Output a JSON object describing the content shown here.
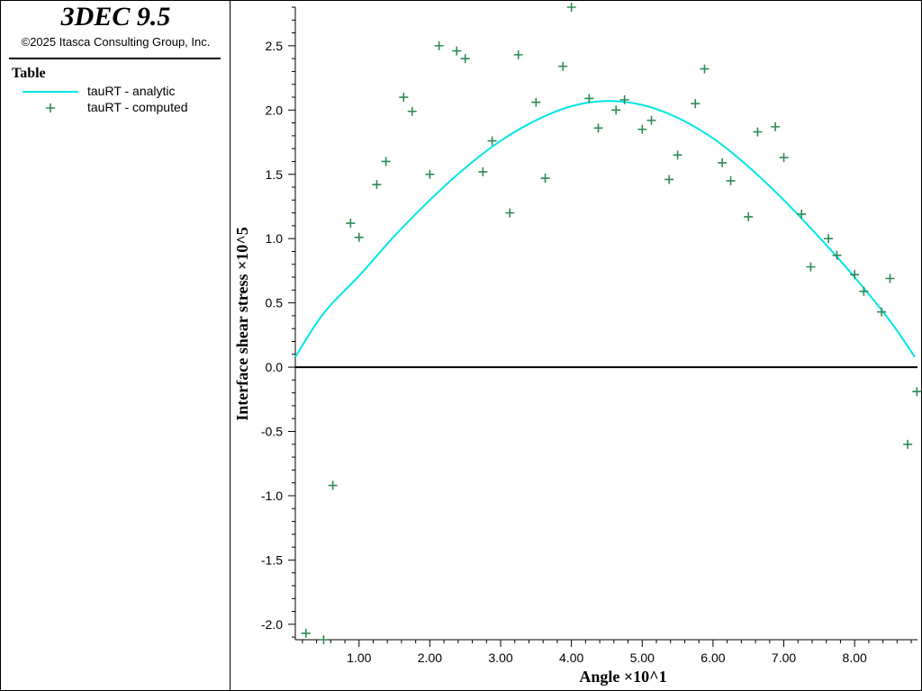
{
  "app": {
    "title": "3DEC 9.5",
    "copyright": "©2025 Itasca Consulting Group, Inc."
  },
  "legend": {
    "heading": "Table",
    "items": [
      {
        "label": "tauRT - analytic",
        "color": "#00e5e5",
        "marker": "line"
      },
      {
        "label": "tauRT - computed",
        "color": "#2e8b57",
        "marker": "plus"
      }
    ]
  },
  "chart_data": {
    "type": "scatter",
    "xlabel": "Angle ×10^1",
    "ylabel": "Interface shear stress ×10^5",
    "xlim": [
      0.1,
      8.85
    ],
    "ylim": [
      -2.12,
      2.8
    ],
    "xticks": [
      1.0,
      2.0,
      3.0,
      4.0,
      5.0,
      6.0,
      7.0,
      8.0
    ],
    "xtick_labels": [
      "1.00",
      "2.00",
      "3.00",
      "4.00",
      "5.00",
      "6.00",
      "7.00",
      "8.00"
    ],
    "yticks": [
      -2.0,
      -1.5,
      -1.0,
      -0.5,
      0.0,
      0.5,
      1.0,
      1.5,
      2.0,
      2.5
    ],
    "ytick_labels": [
      "-2.0",
      "-1.5",
      "-1.0",
      "-0.5",
      "0.0",
      "0.5",
      "1.0",
      "1.5",
      "2.0",
      "2.5"
    ],
    "zero_line": true,
    "grid": false,
    "series": [
      {
        "name": "tauRT - analytic",
        "type": "line",
        "color": "#00e5e5",
        "x": [
          0.1,
          0.5,
          1.0,
          1.5,
          2.0,
          2.5,
          3.0,
          3.5,
          4.0,
          4.5,
          5.0,
          5.5,
          6.0,
          6.5,
          7.0,
          7.5,
          8.0,
          8.5,
          8.85
        ],
        "y": [
          0.08,
          0.42,
          0.71,
          1.02,
          1.3,
          1.55,
          1.76,
          1.92,
          2.03,
          2.07,
          2.04,
          1.94,
          1.78,
          1.56,
          1.3,
          1.01,
          0.7,
          0.36,
          0.08
        ]
      },
      {
        "name": "tauRT - computed",
        "type": "scatter",
        "color": "#2e8b57",
        "x": [
          0.25,
          0.5,
          0.63,
          0.88,
          1.0,
          1.25,
          1.38,
          1.63,
          1.75,
          2.0,
          2.13,
          2.38,
          2.5,
          2.75,
          2.88,
          3.13,
          3.25,
          3.5,
          3.63,
          3.88,
          4.0,
          4.25,
          4.38,
          4.63,
          4.75,
          5.0,
          5.13,
          5.38,
          5.5,
          5.75,
          5.88,
          6.13,
          6.25,
          6.5,
          6.63,
          6.88,
          7.0,
          7.25,
          7.38,
          7.63,
          7.75,
          8.0,
          8.13,
          8.38,
          8.5,
          8.75,
          8.88
        ],
        "y": [
          -2.07,
          -2.12,
          -0.92,
          1.12,
          1.01,
          1.42,
          1.6,
          2.1,
          1.99,
          1.5,
          2.5,
          2.46,
          2.4,
          1.52,
          1.76,
          1.2,
          2.43,
          2.06,
          1.47,
          2.34,
          2.8,
          2.09,
          1.86,
          2.0,
          2.08,
          1.85,
          1.92,
          1.46,
          1.65,
          2.05,
          2.32,
          1.59,
          1.45,
          1.17,
          1.83,
          1.87,
          1.63,
          1.19,
          0.78,
          1.0,
          0.87,
          0.72,
          0.59,
          0.43,
          0.69,
          -0.6,
          -0.19
        ]
      }
    ]
  }
}
